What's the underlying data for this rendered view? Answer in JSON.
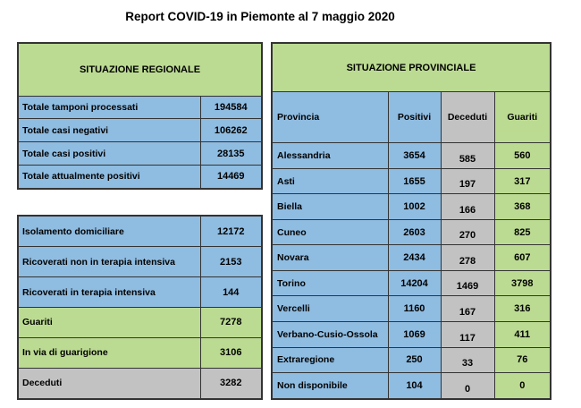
{
  "title": "Report COVID-19 in Piemonte al 7 maggio 2020",
  "colors": {
    "blue": "#8FBCE1",
    "green": "#BCDB92",
    "gray": "#C2C2C2",
    "border": "#333333"
  },
  "regional": {
    "header": "SITUAZIONE REGIONALE",
    "rows": [
      {
        "label": "Totale tamponi processati",
        "value": "194584",
        "tone": "blue"
      },
      {
        "label": "Totale casi negativi",
        "value": "106262",
        "tone": "blue"
      },
      {
        "label": "Totale casi positivi",
        "value": "28135",
        "tone": "blue"
      },
      {
        "label": "Totale attualmente positivi",
        "value": "14469",
        "tone": "blue"
      }
    ]
  },
  "status": {
    "rows": [
      {
        "label": "Isolamento domiciliare",
        "value": "12172",
        "tone": "blue"
      },
      {
        "label": "Ricoverati non in terapia intensiva",
        "value": "2153",
        "tone": "blue"
      },
      {
        "label": "Ricoverati in terapia intensiva",
        "value": "144",
        "tone": "blue"
      },
      {
        "label": "Guariti",
        "value": "7278",
        "tone": "green"
      },
      {
        "label": "In via di guarigione",
        "value": "3106",
        "tone": "green"
      },
      {
        "label": "Deceduti",
        "value": "3282",
        "tone": "gray"
      }
    ]
  },
  "provincial": {
    "header": "SITUAZIONE PROVINCIALE",
    "columns": [
      "Provincia",
      "Positivi",
      "Deceduti",
      "Guariti"
    ],
    "rows": [
      {
        "provincia": "Alessandria",
        "positivi": "3654",
        "deceduti": "585",
        "guariti": "560"
      },
      {
        "provincia": "Asti",
        "positivi": "1655",
        "deceduti": "197",
        "guariti": "317"
      },
      {
        "provincia": "Biella",
        "positivi": "1002",
        "deceduti": "166",
        "guariti": "368"
      },
      {
        "provincia": "Cuneo",
        "positivi": "2603",
        "deceduti": "270",
        "guariti": "825"
      },
      {
        "provincia": "Novara",
        "positivi": "2434",
        "deceduti": "278",
        "guariti": "607"
      },
      {
        "provincia": "Torino",
        "positivi": "14204",
        "deceduti": "1469",
        "guariti": "3798"
      },
      {
        "provincia": "Vercelli",
        "positivi": "1160",
        "deceduti": "167",
        "guariti": "316"
      },
      {
        "provincia": "Verbano-Cusio-Ossola",
        "positivi": "1069",
        "deceduti": "117",
        "guariti": "411"
      },
      {
        "provincia": "Extraregione",
        "positivi": "250",
        "deceduti": "33",
        "guariti": "76"
      },
      {
        "provincia": "Non disponibile",
        "positivi": "104",
        "deceduti": "0",
        "guariti": "0"
      }
    ]
  }
}
